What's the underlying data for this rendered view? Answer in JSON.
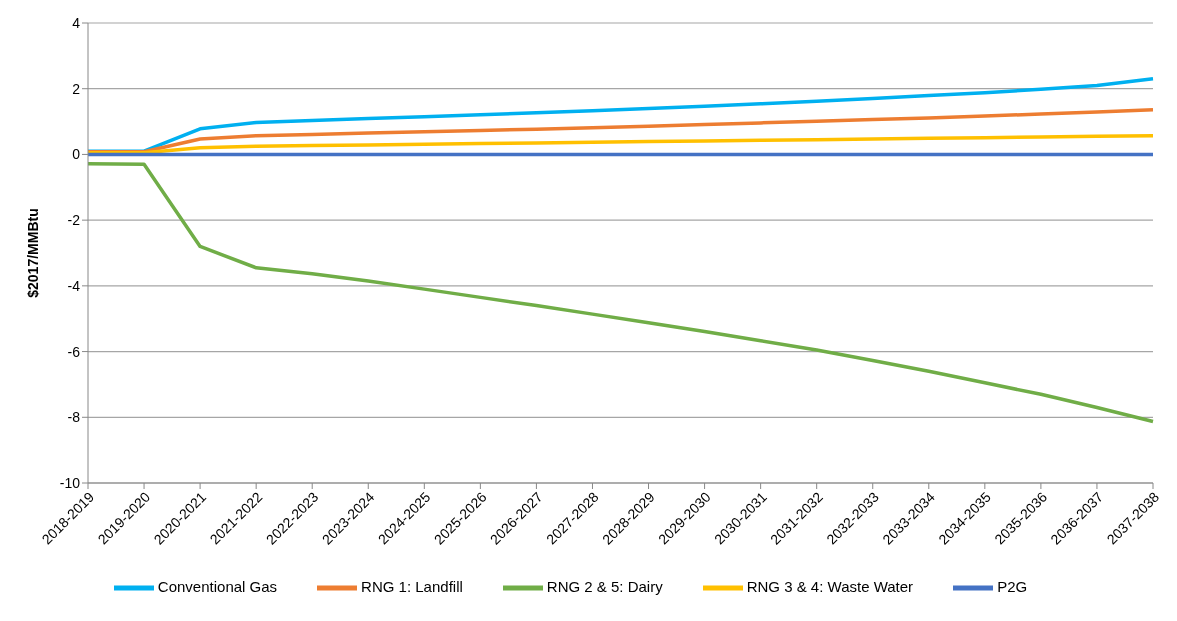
{
  "chart_data": {
    "type": "line",
    "ylabel": "$2017/MMBtu",
    "categories": [
      "2018-2019",
      "2019-2020",
      "2020-2021",
      "2021-2022",
      "2022-2023",
      "2023-2024",
      "2024-2025",
      "2025-2026",
      "2026-2027",
      "2027-2028",
      "2028-2029",
      "2029-2030",
      "2030-2031",
      "2031-2032",
      "2032-2033",
      "2033-2034",
      "2034-2035",
      "2035-2036",
      "2036-2037",
      "2037-2038"
    ],
    "series": [
      {
        "name": "Conventional Gas",
        "color": "#00b0f0",
        "values": [
          0.1,
          0.1,
          0.78,
          0.97,
          1.03,
          1.09,
          1.15,
          1.21,
          1.27,
          1.33,
          1.4,
          1.47,
          1.54,
          1.62,
          1.7,
          1.79,
          1.88,
          1.98,
          2.1,
          2.3
        ]
      },
      {
        "name": "RNG 1: Landfill",
        "color": "#ed7d31",
        "values": [
          0.08,
          0.08,
          0.47,
          0.57,
          0.61,
          0.65,
          0.69,
          0.73,
          0.77,
          0.81,
          0.86,
          0.91,
          0.96,
          1.01,
          1.06,
          1.11,
          1.17,
          1.23,
          1.29,
          1.36
        ]
      },
      {
        "name": "RNG 2 & 5: Dairy",
        "color": "#70ad47",
        "values": [
          -0.28,
          -0.3,
          -2.8,
          -3.45,
          -3.63,
          -3.85,
          -4.1,
          -4.35,
          -4.6,
          -4.86,
          -5.12,
          -5.39,
          -5.67,
          -5.95,
          -6.27,
          -6.6,
          -6.95,
          -7.3,
          -7.7,
          -8.13
        ]
      },
      {
        "name": "RNG 3 & 4: Waste Water",
        "color": "#ffc000",
        "values": [
          0.05,
          0.05,
          0.2,
          0.25,
          0.27,
          0.29,
          0.31,
          0.33,
          0.35,
          0.37,
          0.39,
          0.41,
          0.43,
          0.45,
          0.47,
          0.49,
          0.51,
          0.53,
          0.55,
          0.57
        ]
      },
      {
        "name": "P2G",
        "color": "#4472c4",
        "values": [
          0,
          0,
          0,
          0,
          0,
          0,
          0,
          0,
          0,
          0,
          0,
          0,
          0,
          0,
          0,
          0,
          0,
          0,
          0,
          0
        ]
      }
    ],
    "ylim": [
      -10,
      4
    ],
    "yticks": [
      -10,
      -8,
      -6,
      -4,
      -2,
      0,
      2,
      4
    ],
    "grid": "y",
    "legend": "bottom",
    "marker": "none",
    "line_style": "solid"
  }
}
